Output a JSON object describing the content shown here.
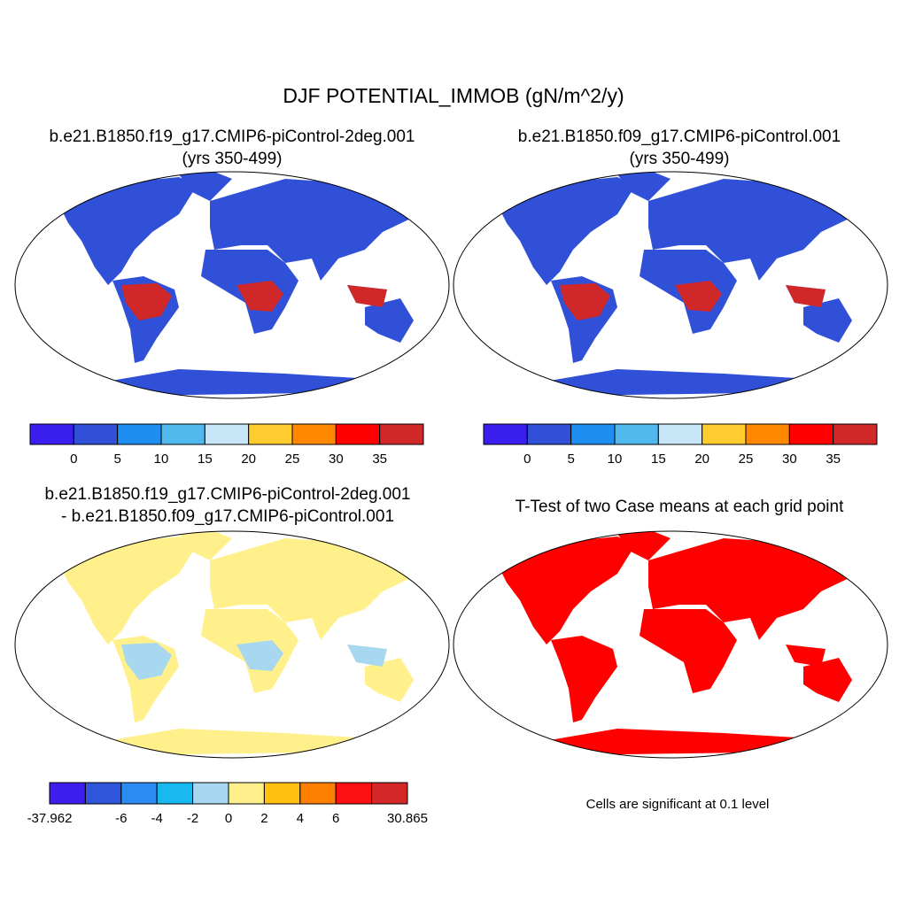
{
  "title": "DJF POTENTIAL_IMMOB (gN/m^2/y)",
  "panels": [
    {
      "title": [
        "b.e21.B1850.f19_g17.CMIP6-piControl-2deg.001",
        "(yrs 350-499)"
      ],
      "colorbar": {
        "colors": [
          "#3a1ef0",
          "#3050d8",
          "#1e8ef0",
          "#50b8ec",
          "#c8e6f8",
          "#ffcc30",
          "#ff8800",
          "#ff0000",
          "#d02828"
        ],
        "labels": [
          null,
          0,
          5,
          10,
          15,
          20,
          25,
          30,
          35,
          null
        ]
      }
    },
    {
      "title": [
        "b.e21.B1850.f09_g17.CMIP6-piControl.001",
        "(yrs 350-499)"
      ],
      "colorbar": {
        "colors": [
          "#3a1ef0",
          "#3050d8",
          "#1e8ef0",
          "#50b8ec",
          "#c8e6f8",
          "#ffcc30",
          "#ff8800",
          "#ff0000",
          "#d02828"
        ],
        "labels": [
          null,
          0,
          5,
          10,
          15,
          20,
          25,
          30,
          35,
          null
        ]
      }
    },
    {
      "title": [
        "b.e21.B1850.f19_g17.CMIP6-piControl-2deg.001",
        "- b.e21.B1850.f09_g17.CMIP6-piControl.001"
      ],
      "colorbar": {
        "colors": [
          "#3c1ef0",
          "#2f55dc",
          "#2a8cf0",
          "#18b8f0",
          "#a8d8f0",
          "#fff08c",
          "#ffc010",
          "#ff8000",
          "#ff1010",
          "#d42828"
        ],
        "labels": [
          -37.962,
          null,
          -6,
          -4,
          -2,
          0,
          2,
          4,
          6,
          null,
          30.865
        ]
      }
    },
    {
      "title": [
        "T-Test of two Case means at each grid point"
      ],
      "note": "Cells are significant at 0.1 level"
    }
  ]
}
